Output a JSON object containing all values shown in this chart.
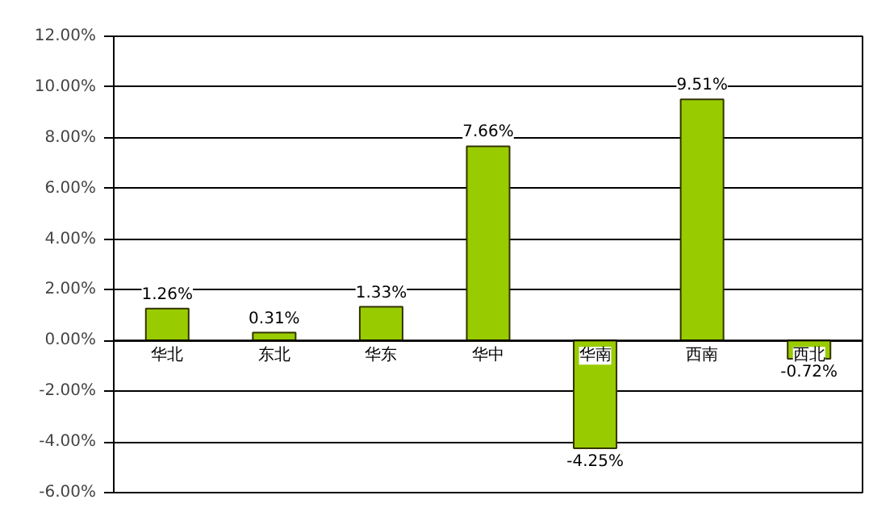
{
  "chart_data": {
    "type": "bar",
    "categories": [
      "华北",
      "东北",
      "华东",
      "华中",
      "华南",
      "西南",
      "西北"
    ],
    "values": [
      1.26,
      0.31,
      1.33,
      7.66,
      -4.25,
      9.51,
      -0.72
    ],
    "color": "#99cc00",
    "value_labels": [
      "1.26%",
      "0.31%",
      "1.33%",
      "7.66%",
      "-4.25%",
      "9.51%",
      "-0.72%"
    ],
    "ylim": [
      -6,
      12
    ],
    "yticks": [
      {
        "value": -6,
        "label": "-6.00%"
      },
      {
        "value": -4,
        "label": "-4.00%"
      },
      {
        "value": -2,
        "label": "-2.00%"
      },
      {
        "value": 0,
        "label": "0.00%"
      },
      {
        "value": 2,
        "label": "2.00%"
      },
      {
        "value": 4,
        "label": "4.00%"
      },
      {
        "value": 6,
        "label": "6.00%"
      },
      {
        "value": 8,
        "label": "8.00%"
      },
      {
        "value": 10,
        "label": "10.00%"
      },
      {
        "value": 12,
        "label": "12.00%"
      }
    ],
    "grid": "y"
  }
}
